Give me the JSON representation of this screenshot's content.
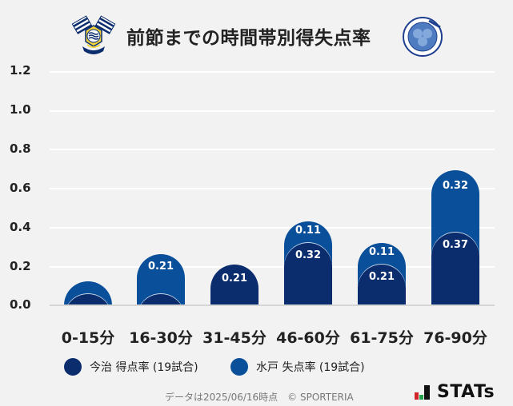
{
  "header": {
    "title": "前節までの時間帯別得失点率",
    "home_logo": "imabari-crest-icon",
    "away_logo": "mito-hollyhock-crest-icon"
  },
  "colors": {
    "home": "#0b2d6e",
    "away": "#0a4f9a",
    "background": "#f2f2f2",
    "grid": "#ffffff"
  },
  "yaxis": {
    "ticks": [
      "1.2",
      "1.0",
      "0.8",
      "0.6",
      "0.4",
      "0.2",
      "0.0"
    ]
  },
  "bars": [
    {
      "category": "0-15分",
      "home_label": "",
      "away_label": ""
    },
    {
      "category": "16-30分",
      "home_label": "",
      "away_label": "0.21"
    },
    {
      "category": "31-45分",
      "home_label": "0.21",
      "away_label": ""
    },
    {
      "category": "46-60分",
      "home_label": "0.32",
      "away_label": "0.11"
    },
    {
      "category": "61-75分",
      "home_label": "0.21",
      "away_label": "0.11"
    },
    {
      "category": "76-90分",
      "home_label": "0.37",
      "away_label": "0.32"
    }
  ],
  "legend": {
    "home": "今治 得点率 (19試合)",
    "away": "水戸 失点率 (19試合)"
  },
  "footer": {
    "note": "データは2025/06/16時点　© SPORTERIA",
    "brand": "STATs"
  },
  "chart_data": {
    "type": "bar",
    "stacked": true,
    "title": "前節までの時間帯別得失点率",
    "categories": [
      "0-15分",
      "16-30分",
      "31-45分",
      "46-60分",
      "61-75分",
      "76-90分"
    ],
    "series": [
      {
        "name": "今治 得点率 (19試合)",
        "color": "#0b2d6e",
        "values": [
          0.05,
          0.05,
          0.21,
          0.32,
          0.21,
          0.37
        ]
      },
      {
        "name": "水戸 失点率 (19試合)",
        "color": "#0a4f9a",
        "values": [
          0.05,
          0.21,
          0.0,
          0.11,
          0.11,
          0.32
        ]
      }
    ],
    "xlabel": "",
    "ylabel": "",
    "ylim": [
      0,
      1.2
    ],
    "yticks": [
      0.0,
      0.2,
      0.4,
      0.6,
      0.8,
      1.0,
      1.2
    ],
    "grid": true,
    "legend_position": "bottom"
  }
}
